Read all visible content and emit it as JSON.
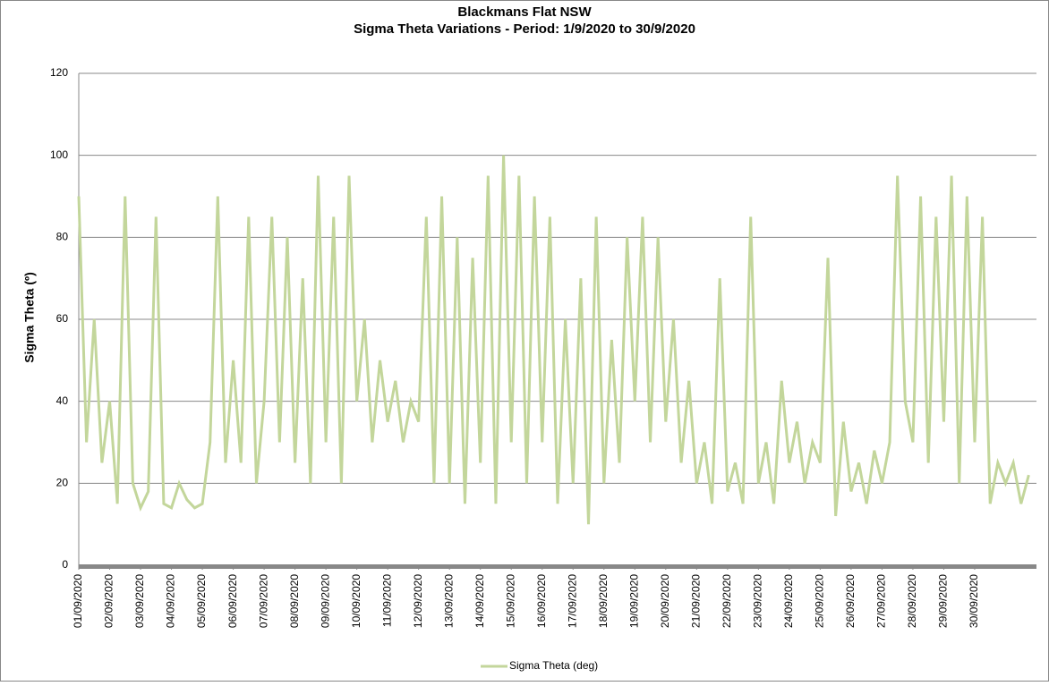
{
  "chart_data": {
    "type": "line",
    "title": "Blackmans Flat NSW",
    "subtitle": "Sigma Theta Variations - Period: 1/9/2020 to 30/9/2020",
    "y_label": "Sigma Theta (º)",
    "x": [
      0,
      6,
      12,
      18,
      24,
      30,
      36,
      42,
      48,
      54,
      60,
      66,
      72,
      78,
      84,
      90,
      96,
      102,
      108,
      114,
      120,
      126,
      132,
      138,
      144,
      150,
      156,
      162,
      168,
      174,
      180,
      186,
      192,
      198,
      204,
      210,
      216,
      222,
      228,
      234,
      240,
      246,
      252,
      258,
      264,
      270,
      276,
      282,
      288,
      294,
      300,
      306,
      312,
      318,
      324,
      330,
      336,
      342,
      348,
      354,
      360,
      366,
      372,
      378,
      384,
      390,
      396,
      402,
      408,
      414,
      420,
      426,
      432,
      438,
      444,
      450,
      456,
      462,
      468,
      474,
      480,
      486,
      492,
      498,
      504,
      510,
      516,
      522,
      528,
      534,
      540,
      546,
      552,
      558,
      564,
      570,
      576,
      582,
      588,
      594,
      600,
      606,
      612,
      618,
      624,
      630,
      636,
      642,
      648,
      654,
      660,
      666,
      672,
      678,
      684,
      690,
      696,
      702,
      708,
      714,
      720,
      726,
      732,
      738
    ],
    "series": [
      {
        "name": "Sigma Theta (deg)",
        "color": "#c3d69b",
        "values": [
          90,
          30,
          60,
          25,
          40,
          15,
          90,
          20,
          14,
          18,
          85,
          15,
          14,
          20,
          16,
          14,
          15,
          30,
          90,
          25,
          50,
          25,
          85,
          20,
          40,
          85,
          30,
          80,
          25,
          70,
          20,
          95,
          30,
          85,
          20,
          95,
          40,
          60,
          30,
          50,
          35,
          45,
          30,
          40,
          35,
          85,
          20,
          90,
          20,
          80,
          15,
          75,
          25,
          95,
          15,
          100,
          30,
          95,
          20,
          90,
          30,
          85,
          15,
          60,
          20,
          70,
          10,
          85,
          20,
          55,
          25,
          80,
          40,
          85,
          30,
          80,
          35,
          60,
          25,
          45,
          20,
          30,
          15,
          70,
          18,
          25,
          15,
          85,
          20,
          30,
          15,
          45,
          25,
          35,
          20,
          30,
          25,
          75,
          12,
          35,
          18,
          25,
          15,
          28,
          20,
          30,
          95,
          40,
          30,
          90,
          25,
          85,
          35,
          95,
          20,
          90,
          30,
          85,
          15,
          25,
          20,
          25,
          15,
          22
        ]
      }
    ],
    "xlim": [
      0,
      744
    ],
    "xticks": [
      {
        "value": 0,
        "label": "01/09/2020"
      },
      {
        "value": 24,
        "label": "02/09/2020"
      },
      {
        "value": 48,
        "label": "03/09/2020"
      },
      {
        "value": 72,
        "label": "04/09/2020"
      },
      {
        "value": 96,
        "label": "05/09/2020"
      },
      {
        "value": 120,
        "label": "06/09/2020"
      },
      {
        "value": 144,
        "label": "07/09/2020"
      },
      {
        "value": 168,
        "label": "08/09/2020"
      },
      {
        "value": 192,
        "label": "09/09/2020"
      },
      {
        "value": 216,
        "label": "10/09/2020"
      },
      {
        "value": 240,
        "label": "11/09/2020"
      },
      {
        "value": 264,
        "label": "12/09/2020"
      },
      {
        "value": 288,
        "label": "13/09/2020"
      },
      {
        "value": 312,
        "label": "14/09/2020"
      },
      {
        "value": 336,
        "label": "15/09/2020"
      },
      {
        "value": 360,
        "label": "16/09/2020"
      },
      {
        "value": 384,
        "label": "17/09/2020"
      },
      {
        "value": 408,
        "label": "18/09/2020"
      },
      {
        "value": 432,
        "label": "19/09/2020"
      },
      {
        "value": 456,
        "label": "20/09/2020"
      },
      {
        "value": 480,
        "label": "21/09/2020"
      },
      {
        "value": 504,
        "label": "22/09/2020"
      },
      {
        "value": 528,
        "label": "23/09/2020"
      },
      {
        "value": 552,
        "label": "24/09/2020"
      },
      {
        "value": 576,
        "label": "25/09/2020"
      },
      {
        "value": 600,
        "label": "26/09/2020"
      },
      {
        "value": 624,
        "label": "27/09/2020"
      },
      {
        "value": 648,
        "label": "28/09/2020"
      },
      {
        "value": 672,
        "label": "29/09/2020"
      },
      {
        "value": 696,
        "label": "30/09/2020"
      }
    ],
    "ylim": [
      0,
      120
    ],
    "yticks": [
      0,
      20,
      40,
      60,
      80,
      100,
      120
    ],
    "grid": true
  }
}
